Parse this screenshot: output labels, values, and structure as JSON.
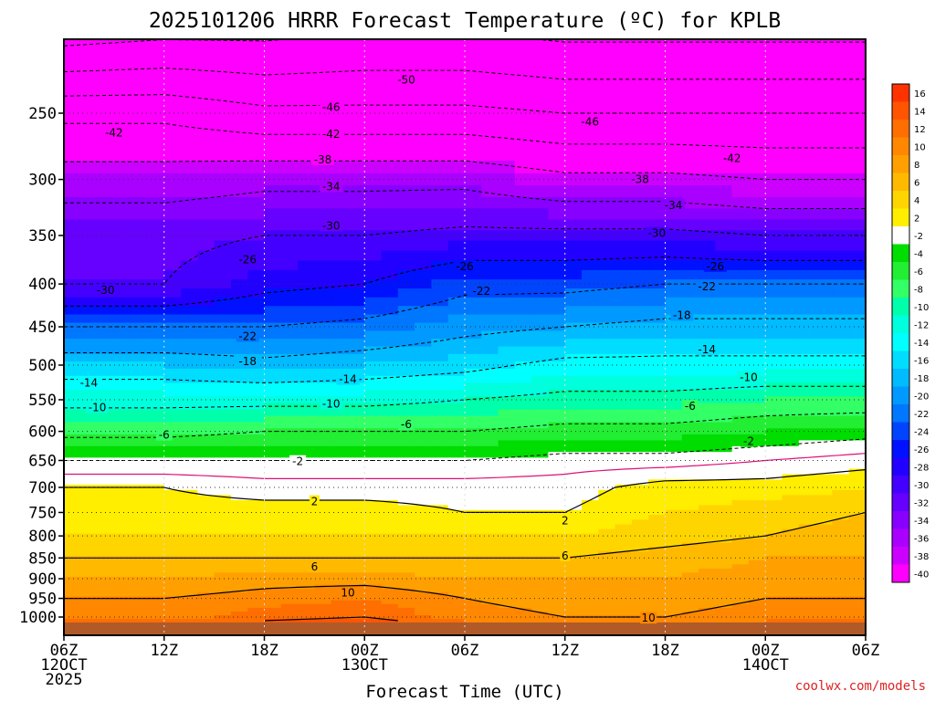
{
  "chart_data": {
    "type": "heatmap",
    "title": "2025101206 HRRR Forecast Temperature (ºC) for KPLB",
    "xlabel": "Forecast Time (UTC)",
    "ylabel": "",
    "credit": "coolwx.com/models",
    "x_range_hours": [
      0,
      48
    ],
    "y_range_hpa": [
      200,
      1040
    ],
    "y_ticks": [
      250,
      300,
      350,
      400,
      450,
      500,
      550,
      600,
      650,
      700,
      750,
      800,
      850,
      900,
      950,
      1000
    ],
    "x_ticks": [
      {
        "hour": 0,
        "lines": [
          "06Z",
          "12OCT",
          "2025"
        ]
      },
      {
        "hour": 6,
        "lines": [
          "12Z"
        ]
      },
      {
        "hour": 12,
        "lines": [
          "18Z"
        ]
      },
      {
        "hour": 18,
        "lines": [
          "00Z",
          "13OCT"
        ]
      },
      {
        "hour": 24,
        "lines": [
          "06Z"
        ]
      },
      {
        "hour": 30,
        "lines": [
          "12Z"
        ]
      },
      {
        "hour": 36,
        "lines": [
          "18Z"
        ]
      },
      {
        "hour": 42,
        "lines": [
          "00Z",
          "14OCT"
        ]
      },
      {
        "hour": 48,
        "lines": [
          "06Z"
        ]
      }
    ],
    "colorbar": {
      "levels": [
        16,
        14,
        12,
        10,
        8,
        6,
        4,
        2,
        -2,
        -4,
        -6,
        -8,
        -10,
        -12,
        -14,
        -16,
        -18,
        -20,
        -22,
        -24,
        -26,
        -28,
        -30,
        -32,
        -34,
        -36,
        -38,
        -40
      ],
      "colors": [
        "#ff3300",
        "#ff5500",
        "#ff6e00",
        "#ff8800",
        "#ffa000",
        "#ffba00",
        "#ffd500",
        "#ffee00",
        "#ffffff",
        "#00dd00",
        "#22ee33",
        "#33ff66",
        "#00ffaa",
        "#00ffdd",
        "#00ffff",
        "#00ddff",
        "#00bbff",
        "#0099ff",
        "#0077ff",
        "#0044ff",
        "#0011ff",
        "#2200ff",
        "#4400ff",
        "#6600ff",
        "#8800ff",
        "#aa00ff",
        "#cc00ff",
        "#ff00ff"
      ]
    },
    "profiles": [
      {
        "hour": 0,
        "temps": [
          [
            200,
            -56
          ],
          [
            250,
            -43
          ],
          [
            300,
            -36
          ],
          [
            350,
            -31
          ],
          [
            400,
            -30
          ],
          [
            450,
            -22
          ],
          [
            500,
            -16
          ],
          [
            550,
            -11
          ],
          [
            600,
            -7
          ],
          [
            650,
            -2
          ],
          [
            700,
            2
          ],
          [
            750,
            3
          ],
          [
            800,
            4
          ],
          [
            850,
            6
          ],
          [
            900,
            8
          ],
          [
            950,
            10
          ],
          [
            1000,
            11
          ],
          [
            1010,
            13
          ]
        ]
      },
      {
        "hour": 6,
        "temps": [
          [
            200,
            -55
          ],
          [
            250,
            -43
          ],
          [
            300,
            -36
          ],
          [
            350,
            -31
          ],
          [
            400,
            -30
          ],
          [
            450,
            -22
          ],
          [
            500,
            -16
          ],
          [
            550,
            -11
          ],
          [
            600,
            -7
          ],
          [
            650,
            -2
          ],
          [
            700,
            2
          ],
          [
            750,
            3
          ],
          [
            800,
            4
          ],
          [
            850,
            6
          ],
          [
            900,
            8
          ],
          [
            950,
            10
          ],
          [
            1000,
            11
          ],
          [
            1010,
            13
          ]
        ]
      },
      {
        "hour": 12,
        "temps": [
          [
            200,
            -55
          ],
          [
            250,
            -45
          ],
          [
            300,
            -35
          ],
          [
            350,
            -30
          ],
          [
            400,
            -27
          ],
          [
            450,
            -22
          ],
          [
            500,
            -17
          ],
          [
            550,
            -11
          ],
          [
            600,
            -6
          ],
          [
            650,
            -2
          ],
          [
            700,
            1
          ],
          [
            750,
            3
          ],
          [
            800,
            4
          ],
          [
            850,
            6
          ],
          [
            900,
            9
          ],
          [
            950,
            11
          ],
          [
            1000,
            13
          ],
          [
            1010,
            14
          ]
        ]
      },
      {
        "hour": 18,
        "temps": [
          [
            200,
            -54
          ],
          [
            250,
            -45
          ],
          [
            300,
            -35
          ],
          [
            350,
            -30
          ],
          [
            400,
            -26
          ],
          [
            450,
            -21
          ],
          [
            500,
            -16
          ],
          [
            550,
            -11
          ],
          [
            600,
            -6
          ],
          [
            650,
            -2
          ],
          [
            700,
            1
          ],
          [
            750,
            3
          ],
          [
            800,
            4
          ],
          [
            850,
            6
          ],
          [
            900,
            9
          ],
          [
            950,
            12
          ],
          [
            1000,
            14
          ],
          [
            1010,
            15
          ]
        ]
      },
      {
        "hour": 24,
        "temps": [
          [
            200,
            -54
          ],
          [
            250,
            -45
          ],
          [
            300,
            -35
          ],
          [
            350,
            -29
          ],
          [
            400,
            -23
          ],
          [
            450,
            -19
          ],
          [
            500,
            -15
          ],
          [
            550,
            -10
          ],
          [
            600,
            -6
          ],
          [
            650,
            -2
          ],
          [
            700,
            1
          ],
          [
            750,
            2
          ],
          [
            800,
            4
          ],
          [
            850,
            6
          ],
          [
            900,
            8
          ],
          [
            950,
            10
          ],
          [
            1000,
            11
          ],
          [
            1010,
            12
          ]
        ]
      },
      {
        "hour": 30,
        "temps": [
          [
            200,
            -55
          ],
          [
            250,
            -46
          ],
          [
            300,
            -37
          ],
          [
            350,
            -29
          ],
          [
            400,
            -23
          ],
          [
            450,
            -18
          ],
          [
            500,
            -13
          ],
          [
            550,
            -9
          ],
          [
            600,
            -5
          ],
          [
            650,
            -1
          ],
          [
            700,
            1
          ],
          [
            750,
            2
          ],
          [
            800,
            4
          ],
          [
            850,
            6
          ],
          [
            900,
            8
          ],
          [
            950,
            9
          ],
          [
            1000,
            10
          ],
          [
            1010,
            11
          ]
        ]
      },
      {
        "hour": 36,
        "temps": [
          [
            200,
            -55
          ],
          [
            250,
            -46
          ],
          [
            300,
            -37
          ],
          [
            350,
            -29
          ],
          [
            400,
            -22
          ],
          [
            450,
            -17
          ],
          [
            500,
            -13
          ],
          [
            550,
            -9
          ],
          [
            600,
            -5
          ],
          [
            650,
            -1
          ],
          [
            700,
            3
          ],
          [
            750,
            4
          ],
          [
            800,
            5
          ],
          [
            850,
            7
          ],
          [
            900,
            8
          ],
          [
            950,
            9
          ],
          [
            1000,
            10
          ],
          [
            1010,
            11
          ]
        ]
      },
      {
        "hour": 42,
        "temps": [
          [
            200,
            -55
          ],
          [
            250,
            -46
          ],
          [
            300,
            -38
          ],
          [
            350,
            -30
          ],
          [
            400,
            -22
          ],
          [
            450,
            -17
          ],
          [
            500,
            -13
          ],
          [
            550,
            -8
          ],
          [
            600,
            -4
          ],
          [
            650,
            0
          ],
          [
            700,
            3
          ],
          [
            750,
            5
          ],
          [
            800,
            6
          ],
          [
            850,
            8
          ],
          [
            900,
            9
          ],
          [
            950,
            10
          ],
          [
            1000,
            11
          ],
          [
            1010,
            12
          ]
        ]
      },
      {
        "hour": 48,
        "temps": [
          [
            200,
            -55
          ],
          [
            250,
            -46
          ],
          [
            300,
            -38
          ],
          [
            350,
            -30
          ],
          [
            400,
            -22
          ],
          [
            450,
            -17
          ],
          [
            500,
            -13
          ],
          [
            550,
            -8
          ],
          [
            600,
            -3
          ],
          [
            650,
            1
          ],
          [
            700,
            4
          ],
          [
            750,
            6
          ],
          [
            800,
            7
          ],
          [
            850,
            8
          ],
          [
            900,
            9
          ],
          [
            950,
            10
          ],
          [
            1000,
            11
          ],
          [
            1010,
            12
          ]
        ]
      }
    ],
    "contour_labels": [
      {
        "text": "-50",
        "hour": 20.5,
        "p": 228
      },
      {
        "text": "-46",
        "hour": 16,
        "p": 246
      },
      {
        "text": "-46",
        "hour": 31.5,
        "p": 256
      },
      {
        "text": "-42",
        "hour": 3,
        "p": 264
      },
      {
        "text": "-42",
        "hour": 16,
        "p": 265
      },
      {
        "text": "-42",
        "hour": 40,
        "p": 283
      },
      {
        "text": "-38",
        "hour": 15.5,
        "p": 284
      },
      {
        "text": "-38",
        "hour": 34.5,
        "p": 300
      },
      {
        "text": "-34",
        "hour": 16,
        "p": 306
      },
      {
        "text": "-34",
        "hour": 36.5,
        "p": 322
      },
      {
        "text": "-30",
        "hour": 16,
        "p": 341
      },
      {
        "text": "-30",
        "hour": 35.5,
        "p": 348
      },
      {
        "text": "-30",
        "hour": 2.5,
        "p": 407
      },
      {
        "text": "-26",
        "hour": 11,
        "p": 374
      },
      {
        "text": "-26",
        "hour": 24,
        "p": 381
      },
      {
        "text": "-26",
        "hour": 39,
        "p": 381
      },
      {
        "text": "-22",
        "hour": 25,
        "p": 408
      },
      {
        "text": "-22",
        "hour": 38.5,
        "p": 403
      },
      {
        "text": "-22",
        "hour": 11,
        "p": 462
      },
      {
        "text": "-18",
        "hour": 37,
        "p": 436
      },
      {
        "text": "-18",
        "hour": 11,
        "p": 495
      },
      {
        "text": "-14",
        "hour": 38.5,
        "p": 479
      },
      {
        "text": "-14",
        "hour": 17,
        "p": 520
      },
      {
        "text": "-14",
        "hour": 1.5,
        "p": 525
      },
      {
        "text": "-10",
        "hour": 41,
        "p": 517
      },
      {
        "text": "-10",
        "hour": 16,
        "p": 556
      },
      {
        "text": "-10",
        "hour": 2,
        "p": 562
      },
      {
        "text": "-6",
        "hour": 37.5,
        "p": 560
      },
      {
        "text": "-6",
        "hour": 20.5,
        "p": 589
      },
      {
        "text": "-6",
        "hour": 6,
        "p": 606
      },
      {
        "text": "-2",
        "hour": 41,
        "p": 617
      },
      {
        "text": "-2",
        "hour": 14,
        "p": 652
      },
      {
        "text": "2",
        "hour": 15,
        "p": 728
      },
      {
        "text": "2",
        "hour": 30,
        "p": 767
      },
      {
        "text": "6",
        "hour": 15,
        "p": 871
      },
      {
        "text": "6",
        "hour": 30,
        "p": 845
      },
      {
        "text": "10",
        "hour": 17,
        "p": 936
      },
      {
        "text": "10",
        "hour": 35,
        "p": 1003
      }
    ]
  }
}
